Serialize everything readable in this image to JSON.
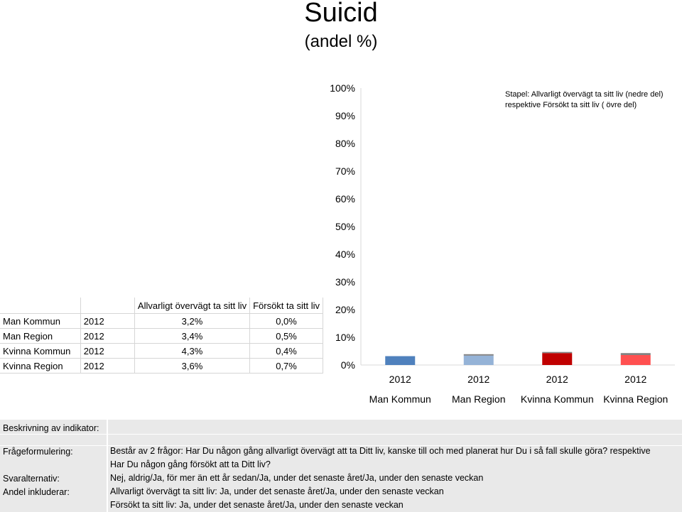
{
  "title": "Suicid",
  "subtitle": "(andel %)",
  "legend_note": "Stapel: Allvarligt övervägt ta sitt liv (nedre del) respektive  Försökt ta sitt liv ( övre del)",
  "colors": {
    "man_kommun": "#4f81bd",
    "man_region": "#95b3d7",
    "kvinna_kommun": "#c00000",
    "kvinna_region": "#ff5050",
    "upper_segment": "#808080",
    "grid": "#d9d9d9"
  },
  "chart_data": {
    "type": "bar",
    "stacked": true,
    "y_ticks": [
      "0%",
      "10%",
      "20%",
      "30%",
      "40%",
      "50%",
      "60%",
      "70%",
      "80%",
      "90%",
      "100%"
    ],
    "ylim": [
      0,
      100
    ],
    "categories": [
      {
        "year": "2012",
        "name": "Man Kommun"
      },
      {
        "year": "2012",
        "name": "Man Region"
      },
      {
        "year": "2012",
        "name": "Kvinna Kommun"
      },
      {
        "year": "2012",
        "name": "Kvinna Region"
      }
    ],
    "series": [
      {
        "name": "Allvarligt övervägt ta sitt liv",
        "values": [
          3.2,
          3.4,
          4.3,
          3.6
        ]
      },
      {
        "name": "Försökt ta sitt liv",
        "values": [
          0.0,
          0.5,
          0.4,
          0.7
        ]
      }
    ]
  },
  "table": {
    "headers": [
      "",
      "",
      "Allvarligt övervägt ta sitt liv",
      "Försökt ta sitt liv"
    ],
    "rows": [
      [
        "Man Kommun",
        "2012",
        "3,2%",
        "0,0%"
      ],
      [
        "Man Region",
        "2012",
        "3,4%",
        "0,5%"
      ],
      [
        "Kvinna Kommun",
        "2012",
        "4,3%",
        "0,4%"
      ],
      [
        "Kvinna Region",
        "2012",
        "3,6%",
        "0,7%"
      ]
    ]
  },
  "info": {
    "beskrivning_label": "Beskrivning av indikator:",
    "fragor_label": "Frågeformulering:",
    "svar_label": "Svaralternativ:",
    "andel_label": "Andel inkluderar:",
    "fragor_line1": "Består av 2 frågor: Har Du någon gång allvarligt övervägt att ta Ditt liv, kanske till och med planerat hur Du i så fall skulle göra? respektive",
    "fragor_line2": "Har Du någon gång försökt att ta Ditt liv?",
    "svar_text": "Nej, aldrig/Ja, för mer än ett år sedan/Ja, under det senaste året/Ja, under den senaste veckan",
    "andel_line1": "Allvarligt övervägt ta sitt liv: Ja, under det senaste året/Ja, under den senaste veckan",
    "andel_line2": "Försökt ta sitt liv: Ja, under det senaste året/Ja, under den senaste veckan"
  }
}
